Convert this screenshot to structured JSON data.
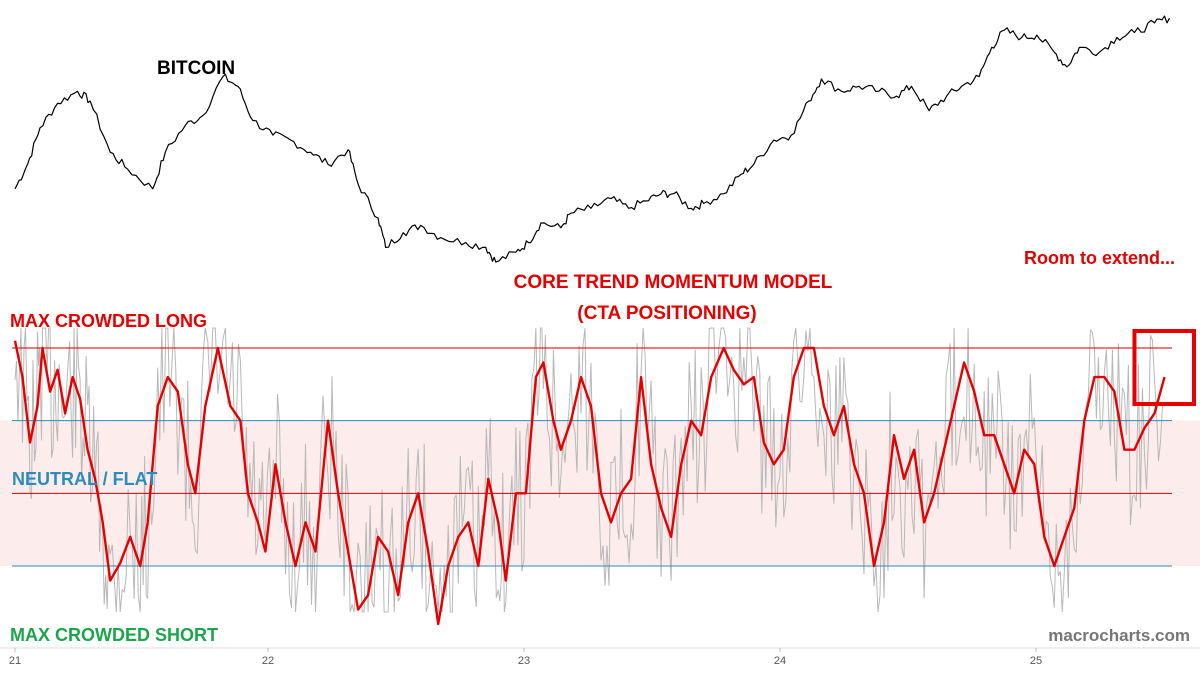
{
  "chart_data": {
    "type": "line",
    "x_axis": {
      "ticks": [
        "21",
        "22",
        "23",
        "24",
        "25"
      ],
      "range": [
        2021,
        2025.62
      ]
    },
    "annotations": {
      "price_label": "BITCOIN",
      "model_title_line1": "CORE TREND MOMENTUM MODEL",
      "model_title_line2": "(CTA POSITIONING)",
      "callout": "Room to extend...",
      "top_band": "MAX CROWDED LONG",
      "middle_band": "NEUTRAL / FLAT",
      "bottom_band": "MAX CROWDED SHORT",
      "watermark": "macrocharts.com"
    },
    "colors": {
      "price": "#000000",
      "model": "#e60000",
      "raw_signal": "#b8b8b8",
      "top_line": "#cc0000",
      "mid_line": "#cc0000",
      "upper_blue_line": "#2b8cbe",
      "lower_blue_line": "#2b8cbe",
      "neutral_zone": "#fdecec",
      "short_label": "#1aa64a",
      "neutral_label": "#2b8cbe",
      "long_label": "#e60000",
      "highlight_box": "#e60000"
    },
    "panels": {
      "price": {
        "name": "Bitcoin",
        "points": [
          [
            2021.0,
            0.3
          ],
          [
            2021.05,
            0.4
          ],
          [
            2021.1,
            0.55
          ],
          [
            2021.17,
            0.65
          ],
          [
            2021.25,
            0.7
          ],
          [
            2021.3,
            0.66
          ],
          [
            2021.38,
            0.45
          ],
          [
            2021.45,
            0.38
          ],
          [
            2021.55,
            0.3
          ],
          [
            2021.6,
            0.45
          ],
          [
            2021.68,
            0.56
          ],
          [
            2021.75,
            0.6
          ],
          [
            2021.83,
            0.76
          ],
          [
            2021.89,
            0.72
          ],
          [
            2021.95,
            0.58
          ],
          [
            2022.03,
            0.52
          ],
          [
            2022.1,
            0.5
          ],
          [
            2022.18,
            0.45
          ],
          [
            2022.25,
            0.4
          ],
          [
            2022.33,
            0.46
          ],
          [
            2022.37,
            0.32
          ],
          [
            2022.45,
            0.18
          ],
          [
            2022.48,
            0.06
          ],
          [
            2022.55,
            0.12
          ],
          [
            2022.62,
            0.15
          ],
          [
            2022.7,
            0.1
          ],
          [
            2022.8,
            0.08
          ],
          [
            2022.88,
            0.06
          ],
          [
            2022.92,
            0.0
          ],
          [
            2023.0,
            0.04
          ],
          [
            2023.05,
            0.08
          ],
          [
            2023.1,
            0.16
          ],
          [
            2023.18,
            0.14
          ],
          [
            2023.22,
            0.2
          ],
          [
            2023.3,
            0.22
          ],
          [
            2023.38,
            0.26
          ],
          [
            2023.45,
            0.22
          ],
          [
            2023.52,
            0.25
          ],
          [
            2023.58,
            0.28
          ],
          [
            2023.63,
            0.28
          ],
          [
            2023.7,
            0.22
          ],
          [
            2023.75,
            0.24
          ],
          [
            2023.83,
            0.28
          ],
          [
            2023.9,
            0.36
          ],
          [
            2023.95,
            0.4
          ],
          [
            2024.03,
            0.5
          ],
          [
            2024.1,
            0.52
          ],
          [
            2024.17,
            0.66
          ],
          [
            2024.22,
            0.75
          ],
          [
            2024.3,
            0.7
          ],
          [
            2024.37,
            0.72
          ],
          [
            2024.45,
            0.7
          ],
          [
            2024.52,
            0.68
          ],
          [
            2024.58,
            0.72
          ],
          [
            2024.65,
            0.62
          ],
          [
            2024.72,
            0.68
          ],
          [
            2024.78,
            0.72
          ],
          [
            2024.85,
            0.76
          ],
          [
            2024.9,
            0.88
          ],
          [
            2024.95,
            0.95
          ],
          [
            2025.02,
            0.92
          ],
          [
            2025.08,
            0.93
          ],
          [
            2025.15,
            0.86
          ],
          [
            2025.2,
            0.8
          ],
          [
            2025.25,
            0.88
          ],
          [
            2025.33,
            0.86
          ],
          [
            2025.4,
            0.92
          ],
          [
            2025.47,
            0.94
          ],
          [
            2025.55,
            0.98
          ],
          [
            2025.61,
            1.0
          ]
        ]
      },
      "model": {
        "name": "Core Trend Momentum Model",
        "levels": {
          "max_crowded_long": 1.0,
          "upper_band": 0.5,
          "neutral": 0.0,
          "lower_band": -0.5,
          "max_crowded_short": -1.0
        },
        "points": [
          [
            2021.0,
            1.05
          ],
          [
            2021.03,
            0.8
          ],
          [
            2021.06,
            0.35
          ],
          [
            2021.09,
            0.6
          ],
          [
            2021.11,
            1.0
          ],
          [
            2021.14,
            0.7
          ],
          [
            2021.17,
            0.85
          ],
          [
            2021.2,
            0.55
          ],
          [
            2021.23,
            0.8
          ],
          [
            2021.26,
            0.65
          ],
          [
            2021.29,
            0.3
          ],
          [
            2021.32,
            0.1
          ],
          [
            2021.35,
            -0.2
          ],
          [
            2021.38,
            -0.6
          ],
          [
            2021.42,
            -0.48
          ],
          [
            2021.46,
            -0.3
          ],
          [
            2021.5,
            -0.5
          ],
          [
            2021.53,
            -0.2
          ],
          [
            2021.57,
            0.6
          ],
          [
            2021.61,
            0.8
          ],
          [
            2021.65,
            0.7
          ],
          [
            2021.69,
            0.2
          ],
          [
            2021.72,
            0.0
          ],
          [
            2021.76,
            0.6
          ],
          [
            2021.81,
            1.0
          ],
          [
            2021.86,
            0.6
          ],
          [
            2021.9,
            0.5
          ],
          [
            2021.93,
            0.0
          ],
          [
            2021.97,
            -0.2
          ],
          [
            2022.0,
            -0.4
          ],
          [
            2022.04,
            0.2
          ],
          [
            2022.08,
            -0.2
          ],
          [
            2022.12,
            -0.5
          ],
          [
            2022.16,
            -0.2
          ],
          [
            2022.2,
            -0.4
          ],
          [
            2022.25,
            0.5
          ],
          [
            2022.29,
            0.0
          ],
          [
            2022.33,
            -0.4
          ],
          [
            2022.37,
            -0.8
          ],
          [
            2022.41,
            -0.7
          ],
          [
            2022.45,
            -0.3
          ],
          [
            2022.49,
            -0.4
          ],
          [
            2022.53,
            -0.7
          ],
          [
            2022.57,
            -0.2
          ],
          [
            2022.61,
            0.0
          ],
          [
            2022.65,
            -0.4
          ],
          [
            2022.69,
            -0.9
          ],
          [
            2022.73,
            -0.5
          ],
          [
            2022.77,
            -0.3
          ],
          [
            2022.81,
            -0.2
          ],
          [
            2022.85,
            -0.5
          ],
          [
            2022.89,
            0.1
          ],
          [
            2022.93,
            -0.2
          ],
          [
            2022.96,
            -0.6
          ],
          [
            2023.0,
            0.0
          ],
          [
            2023.04,
            0.0
          ],
          [
            2023.08,
            0.8
          ],
          [
            2023.11,
            0.9
          ],
          [
            2023.15,
            0.5
          ],
          [
            2023.18,
            0.3
          ],
          [
            2023.22,
            0.5
          ],
          [
            2023.26,
            0.8
          ],
          [
            2023.3,
            0.6
          ],
          [
            2023.34,
            0.0
          ],
          [
            2023.38,
            -0.2
          ],
          [
            2023.42,
            0.0
          ],
          [
            2023.46,
            0.1
          ],
          [
            2023.5,
            0.8
          ],
          [
            2023.54,
            0.2
          ],
          [
            2023.58,
            -0.1
          ],
          [
            2023.62,
            -0.3
          ],
          [
            2023.66,
            0.2
          ],
          [
            2023.7,
            0.5
          ],
          [
            2023.74,
            0.4
          ],
          [
            2023.78,
            0.8
          ],
          [
            2023.83,
            1.0
          ],
          [
            2023.87,
            0.85
          ],
          [
            2023.91,
            0.75
          ],
          [
            2023.95,
            0.8
          ],
          [
            2023.99,
            0.35
          ],
          [
            2024.03,
            0.2
          ],
          [
            2024.07,
            0.3
          ],
          [
            2024.11,
            0.8
          ],
          [
            2024.15,
            1.0
          ],
          [
            2024.19,
            1.0
          ],
          [
            2024.23,
            0.6
          ],
          [
            2024.27,
            0.4
          ],
          [
            2024.31,
            0.6
          ],
          [
            2024.35,
            0.2
          ],
          [
            2024.39,
            0.0
          ],
          [
            2024.43,
            -0.5
          ],
          [
            2024.47,
            -0.2
          ],
          [
            2024.51,
            0.4
          ],
          [
            2024.55,
            0.1
          ],
          [
            2024.59,
            0.3
          ],
          [
            2024.63,
            -0.2
          ],
          [
            2024.67,
            0.0
          ],
          [
            2024.71,
            0.3
          ],
          [
            2024.75,
            0.6
          ],
          [
            2024.79,
            0.9
          ],
          [
            2024.83,
            0.7
          ],
          [
            2024.87,
            0.4
          ],
          [
            2024.91,
            0.4
          ],
          [
            2024.95,
            0.2
          ],
          [
            2024.99,
            0.0
          ],
          [
            2025.03,
            0.3
          ],
          [
            2025.07,
            0.2
          ],
          [
            2025.11,
            -0.3
          ],
          [
            2025.15,
            -0.5
          ],
          [
            2025.19,
            -0.3
          ],
          [
            2025.23,
            -0.1
          ],
          [
            2025.27,
            0.5
          ],
          [
            2025.31,
            0.8
          ],
          [
            2025.35,
            0.8
          ],
          [
            2025.39,
            0.7
          ],
          [
            2025.43,
            0.3
          ],
          [
            2025.47,
            0.3
          ],
          [
            2025.51,
            0.45
          ],
          [
            2025.55,
            0.55
          ],
          [
            2025.59,
            0.8
          ]
        ]
      }
    },
    "highlight_box_x": [
      2025.55,
      2025.62
    ]
  }
}
